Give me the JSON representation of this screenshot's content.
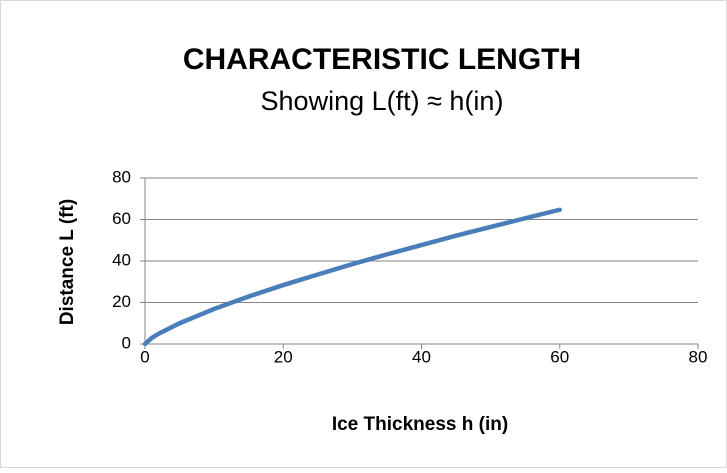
{
  "chart_data": {
    "type": "line",
    "title": "CHARACTERISTIC LENGTH",
    "subtitle": "Showing  L(ft) ≈ h(in)",
    "x_label": "Ice Thickness  h   (in)",
    "y_label": "Distance   L  (ft)",
    "x": [
      0,
      1,
      2,
      5,
      10,
      15,
      20,
      25,
      30,
      35,
      40,
      45,
      50,
      55,
      60
    ],
    "series": [
      {
        "name": "L",
        "color": "#4a7ebb",
        "values": [
          0,
          3.0,
          5.0,
          10.0,
          16.9,
          22.9,
          28.4,
          33.5,
          38.5,
          43.2,
          47.7,
          52.2,
          56.4,
          60.6,
          64.7
        ]
      }
    ],
    "xlim": [
      0,
      80
    ],
    "xticks": [
      0,
      20,
      40,
      60,
      80
    ],
    "ylim": [
      0,
      80
    ],
    "yticks": [
      0,
      20,
      40,
      60,
      80
    ],
    "grid": true
  }
}
